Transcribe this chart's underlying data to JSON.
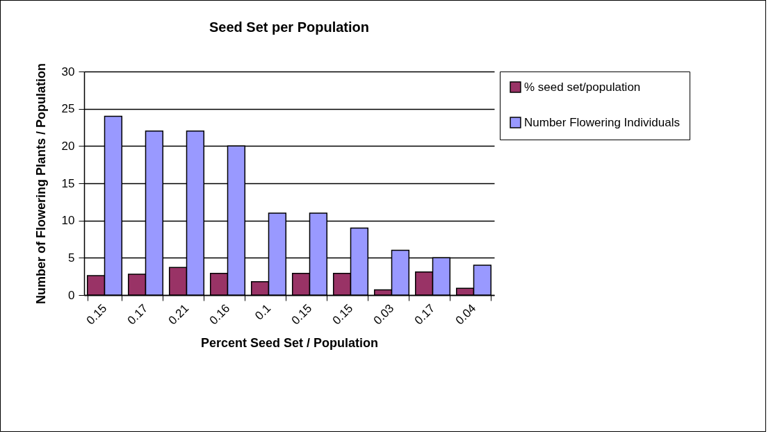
{
  "chart_data": {
    "type": "bar",
    "title": "Seed Set per Population",
    "xlabel": "Percent Seed Set / Population",
    "ylabel": "Number of Flowering Plants / Population",
    "categories": [
      "0.15",
      "0.17",
      "0.21",
      "0.16",
      "0.1",
      "0.15",
      "0.15",
      "0.03",
      "0.17",
      "0.04"
    ],
    "series": [
      {
        "name": "% seed set/population",
        "color": "#993366",
        "values": [
          2.6,
          2.8,
          3.7,
          2.9,
          1.8,
          2.9,
          2.9,
          0.7,
          3.1,
          0.9
        ]
      },
      {
        "name": "Number Flowering Individuals",
        "color": "#9999ff",
        "values": [
          24,
          22,
          22,
          20,
          11,
          11,
          9,
          6,
          5,
          4
        ]
      }
    ],
    "ylim": [
      0,
      30
    ],
    "yticks": [
      0,
      5,
      10,
      15,
      20,
      25,
      30
    ],
    "grid": "y",
    "legend": "right"
  }
}
